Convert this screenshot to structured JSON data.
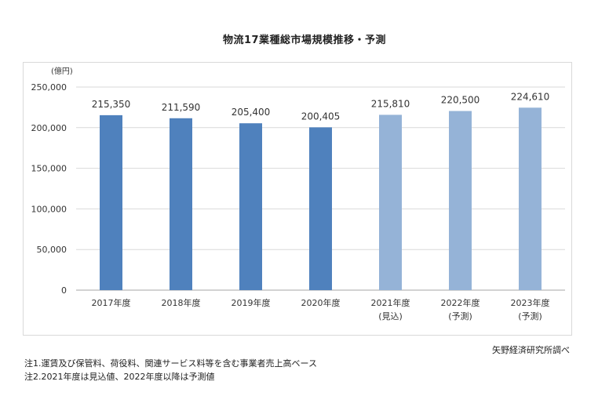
{
  "title": "物流17業種総市場規模推移・予測",
  "source": "矢野経済研究所調べ",
  "notes": [
    "注1.運賃及び保管料、荷役料、関連サービス料等を含む事業者売上高ベース",
    "注2.2021年度は見込値、2022年度以降は予測値"
  ],
  "chart_data": {
    "type": "bar",
    "title": "物流17業種総市場規模推移・予測",
    "ylabel": "(億円)",
    "xlabel": "",
    "categories": [
      "2017年度",
      "2018年度",
      "2019年度",
      "2020年度",
      "2021年度",
      "2022年度",
      "2023年度"
    ],
    "category_sublabels": [
      "",
      "",
      "",
      "",
      "(見込)",
      "(予測)",
      "(予測)"
    ],
    "values": [
      215350,
      211590,
      205400,
      200405,
      215810,
      220500,
      224610
    ],
    "value_labels": [
      "215,350",
      "211,590",
      "205,400",
      "200,405",
      "215,810",
      "220,500",
      "224,610"
    ],
    "ylim": [
      0,
      250000
    ],
    "yticks": [
      0,
      50000,
      100000,
      150000,
      200000,
      250000
    ],
    "ytick_labels": [
      "0",
      "50,000",
      "100,000",
      "150,000",
      "200,000",
      "250,000"
    ],
    "grid": true,
    "legend": "none",
    "colors": {
      "actual": "#4f81bd",
      "forecast": "#95b3d7",
      "gridline": "#d9d9d9",
      "axis": "#a6a6a6"
    },
    "bar_kind": [
      "actual",
      "actual",
      "actual",
      "actual",
      "forecast",
      "forecast",
      "forecast"
    ]
  }
}
